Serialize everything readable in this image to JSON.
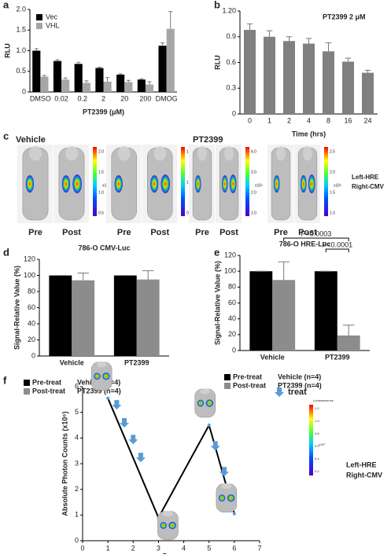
{
  "chart_data": [
    {
      "type": "bar",
      "label": "a",
      "ylabel": "RLU",
      "xlabel": "PT2399 (μM)",
      "categories": [
        "DMSO",
        "0.02",
        "0.2",
        "2",
        "20",
        "200",
        "DMOG"
      ],
      "series": [
        {
          "name": "Vec",
          "color": "#000000",
          "values": [
            1.0,
            0.75,
            0.68,
            0.58,
            0.42,
            0.3,
            1.12
          ],
          "errors": [
            0.05,
            0.03,
            0.04,
            0.02,
            0.02,
            0.02,
            0.07
          ]
        },
        {
          "name": "VHL",
          "color": "#a6a6a6",
          "values": [
            0.37,
            0.3,
            0.22,
            0.25,
            0.24,
            0.18,
            1.53
          ],
          "errors": [
            0.03,
            0.04,
            0.05,
            0.1,
            0.04,
            0.07,
            0.42
          ]
        }
      ],
      "ylim": [
        0,
        2.0
      ],
      "yticks": [
        0,
        0.5,
        {
          "value": 1.0,
          "label": "1.0"
        },
        1.5,
        {
          "value": 2.0,
          "label": "2.0"
        }
      ],
      "legend": "upper-left"
    },
    {
      "type": "bar",
      "label": "b",
      "ylabel": "RLU",
      "xlabel": "Time (hrs)",
      "annotation": "PT2399  2 μM",
      "categories": [
        "0",
        "1",
        "2",
        "4",
        "8",
        "16",
        "24"
      ],
      "values": [
        0.98,
        0.9,
        0.85,
        0.82,
        0.73,
        0.61,
        0.48
      ],
      "errors": [
        0.07,
        0.07,
        0.05,
        0.06,
        0.1,
        0.04,
        0.03
      ],
      "color": "#808080",
      "ylim": [
        0,
        1.2
      ],
      "yticks": [
        0,
        0.3,
        0.6,
        0.9,
        {
          "value": 1.2,
          "label": "1.20"
        }
      ]
    },
    {
      "type": "bar",
      "label": "d",
      "title": "786-O CMV-Luc",
      "ylabel": "Signal-Relative Value (%)",
      "categories": [
        "Vehicle",
        "PT2399"
      ],
      "series": [
        {
          "name": "Pre-treat",
          "color": "#000000",
          "values": [
            100,
            100
          ],
          "errors": [
            0,
            0
          ]
        },
        {
          "name": "Post-treat",
          "color": "#8c8c8c",
          "values": [
            94,
            95
          ],
          "errors": [
            9,
            11
          ]
        }
      ],
      "ylim": [
        0,
        120
      ],
      "yticks": [
        0,
        20,
        40,
        60,
        80,
        100,
        120
      ],
      "legend": "below",
      "legend_notes": [
        "Vehicle (n=4)",
        "PT2399 (n=4)"
      ]
    },
    {
      "type": "bar",
      "label": "e",
      "title": "786-O HRE-Luc",
      "ylabel": "Signal-Relative Value (%)",
      "categories": [
        "Vehicle",
        "PT2399"
      ],
      "series": [
        {
          "name": "Pre-treat",
          "color": "#000000",
          "values": [
            100,
            100
          ],
          "errors": [
            0,
            0
          ]
        },
        {
          "name": "Post-treat",
          "color": "#8c8c8c",
          "values": [
            89,
            19
          ],
          "errors": [
            23,
            13
          ]
        }
      ],
      "ylim": [
        0,
        120
      ],
      "yticks": [
        0,
        20,
        40,
        60,
        80,
        100,
        120
      ],
      "legend": "below",
      "legend_notes": [
        "Vehicle (n=4)",
        "PT2399 (n=4)"
      ],
      "annotations": [
        "P=0.0003",
        "P<0.0001"
      ]
    },
    {
      "type": "line",
      "label": "f",
      "ylabel": "Absolute Photon Counts (x10⁶)",
      "xlabel": "Days",
      "series": [
        {
          "color": "#000000",
          "x": [
            1,
            3,
            5,
            6
          ],
          "values": [
            5.55,
            0.9,
            4.5,
            1.05
          ]
        },
        {
          "name": "treat",
          "color": "#5b9bd5",
          "marker": "arrow",
          "x": [
            1.35,
            1.65,
            2.0,
            2.3,
            5.25,
            5.6
          ],
          "values": [
            5.2,
            4.5,
            3.85,
            3.15,
            3.6,
            2.6
          ]
        }
      ],
      "xlim": [
        0,
        7
      ],
      "xticks": [
        0,
        1,
        2,
        3,
        4,
        5,
        6,
        7
      ],
      "ylim": [
        0,
        6
      ],
      "yticks": [
        0,
        1,
        2,
        3,
        4,
        5,
        6
      ],
      "notes": [
        "Left-HRE",
        "Right-CMV"
      ],
      "colorbar": {
        "title": "Luminescence",
        "ticks": [
          "1.2",
          "1.0",
          "0.8",
          "0.6",
          "0.4",
          "0.2"
        ],
        "unit": "x10⁶"
      }
    }
  ],
  "panel_c": {
    "label": "c",
    "groups": [
      "Vehicle",
      "PT2399"
    ],
    "captions": [
      "Pre",
      "Post",
      "Pre",
      "Post",
      "Pre",
      "Post",
      "Pre",
      "Post"
    ],
    "colorbars": [
      {
        "ticks": [
          "2.0",
          "1.5",
          "1.0",
          "0.5"
        ],
        "unit": "x10⁶"
      },
      {
        "ticks": [
          "1.5",
          "1.0",
          "0.5"
        ],
        "unit": "x10⁶"
      },
      {
        "ticks": [
          "4.0",
          "3.0",
          "2.0",
          "1.0"
        ],
        "unit": "x10⁶"
      },
      {
        "ticks": [
          "2.5",
          "2.0",
          "1.5",
          "1.0"
        ],
        "unit": "x10⁶"
      }
    ],
    "notes": [
      "Left-HRE",
      "Right-CMV"
    ]
  }
}
